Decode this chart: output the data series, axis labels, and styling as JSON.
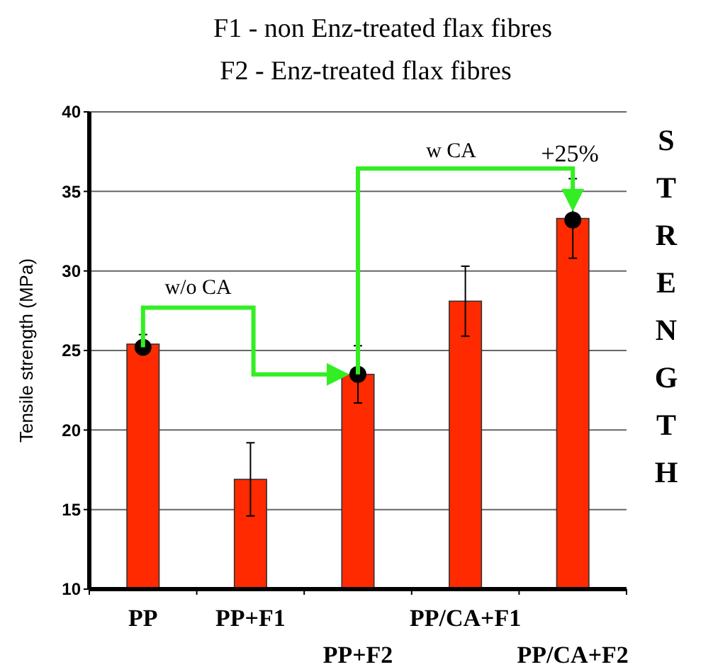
{
  "chart_data": {
    "type": "bar",
    "subtitle": "F1 - non Enz-treated flax fibres",
    "title": "F2 - Enz-treated flax fibres",
    "ylabel": "Tensile strength (MPa)",
    "categories": [
      "PP",
      "PP+F1",
      "PP+F2",
      "PP/CA+F1",
      "PP/CA+F2"
    ],
    "series": [
      {
        "color": "#ff2a00",
        "values": [
          25.4,
          16.9,
          23.5,
          28.1,
          33.3
        ],
        "errors": [
          0.6,
          2.3,
          1.8,
          2.2,
          2.5
        ]
      },
      {
        "type": "scatter",
        "color": "#000000",
        "x": [
          "PP",
          "PP+F2",
          "PP/CA+F2"
        ],
        "values": [
          25.2,
          23.5,
          33.2
        ]
      }
    ],
    "ylim": [
      10,
      40
    ],
    "yticks": [
      10,
      15,
      20,
      25,
      30,
      35,
      40
    ],
    "grid": "y",
    "annotations": [
      "w/o CA",
      "w CA",
      "+25%",
      "STRENGTH"
    ]
  }
}
